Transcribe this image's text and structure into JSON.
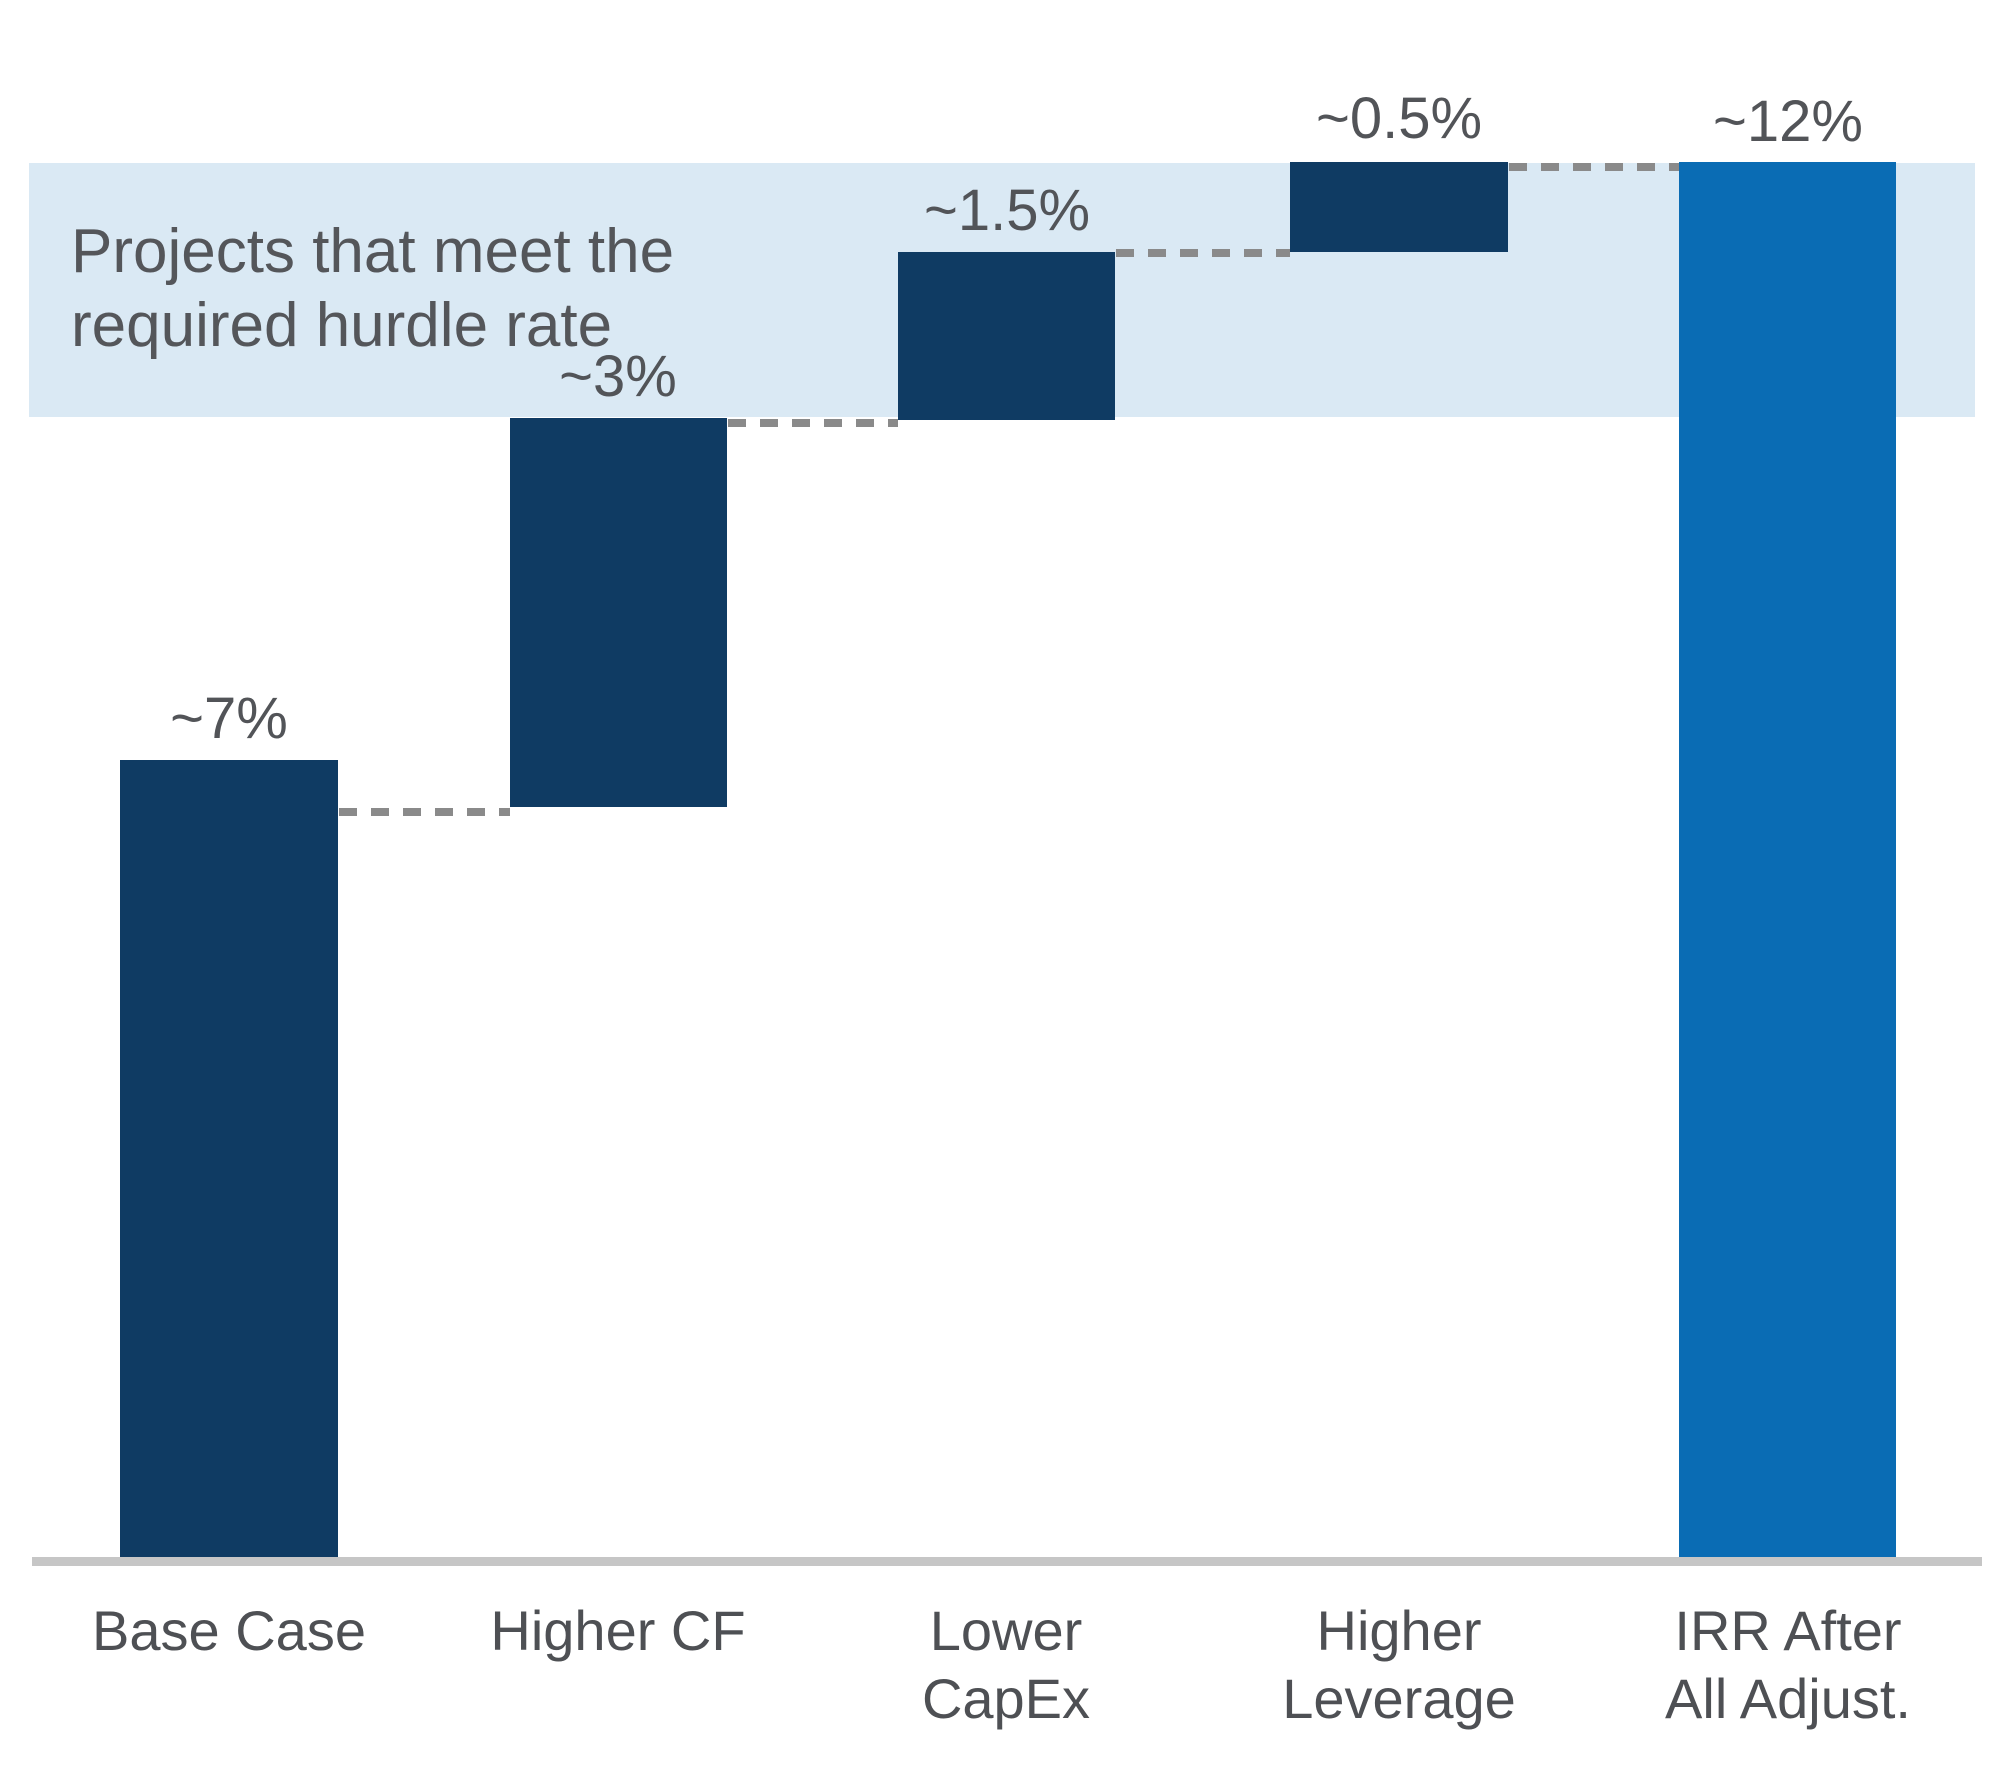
{
  "chart_data": {
    "type": "bar",
    "subtype": "waterfall",
    "title": "",
    "xlabel": "",
    "ylabel": "",
    "legend": "none",
    "grid": false,
    "categories": [
      "Base Case",
      "Higher CF",
      "Lower CapEx",
      "Higher Leverage",
      "IRR After All Adjust."
    ],
    "categories_lines": [
      [
        "Base Case"
      ],
      [
        "Higher CF"
      ],
      [
        "Lower",
        "CapEx"
      ],
      [
        "Higher",
        "Leverage"
      ],
      [
        "IRR After",
        "All Adjust."
      ]
    ],
    "values_percent": [
      7,
      3,
      1.5,
      0.5,
      12
    ],
    "value_labels": [
      "~7%",
      "~3%",
      "~1.5%",
      "~0.5%",
      "~12%"
    ],
    "cumulative_percent": [
      7,
      10,
      11.5,
      12,
      12
    ],
    "bar_roles": [
      "base",
      "increase",
      "increase",
      "increase",
      "total"
    ],
    "annotation": "Projects that meet the required hurdle rate",
    "annotation_lines": [
      "Projects that meet the",
      "required hurdle rate"
    ],
    "hurdle_band_percent_range": [
      10,
      12
    ],
    "colors": {
      "bar_dark_navy": "#0F3B63",
      "bar_final_blue": "#0A6CB4",
      "hurdle_band": "#DAE9F4",
      "connector_dash": "#8A8A8A",
      "axis_line": "#C6C6C6",
      "text_gray": "#525458"
    }
  }
}
